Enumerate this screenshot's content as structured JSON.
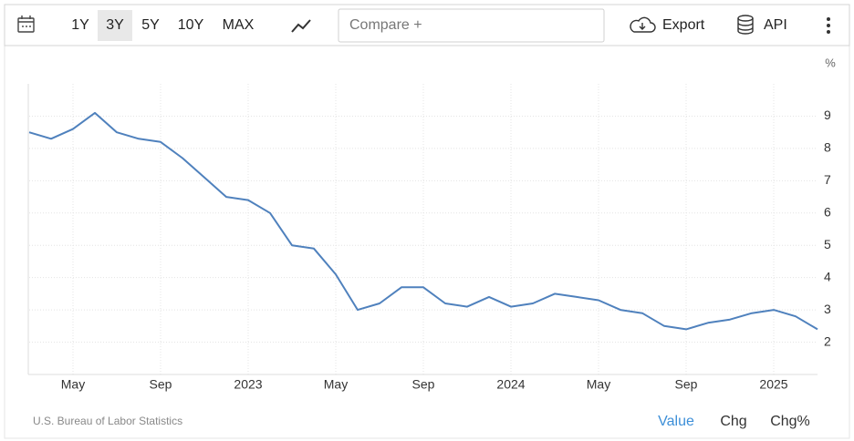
{
  "toolbar": {
    "ranges": [
      "1Y",
      "3Y",
      "5Y",
      "10Y",
      "MAX"
    ],
    "active_range": 1,
    "compare_placeholder": "Compare +",
    "export": "Export",
    "api": "API"
  },
  "chart_data": {
    "type": "line",
    "y_unit": "%",
    "categories": [
      null,
      null,
      "May",
      null,
      null,
      null,
      "Sep",
      null,
      null,
      null,
      "2023",
      null,
      null,
      null,
      "May",
      null,
      null,
      null,
      "Sep",
      null,
      null,
      null,
      "2024",
      null,
      null,
      null,
      "May",
      null,
      null,
      null,
      "Sep",
      null,
      null,
      null,
      "2025",
      null,
      null
    ],
    "series": [
      {
        "name": "Value",
        "color": "#4f81bd",
        "values": [
          8.5,
          8.3,
          8.6,
          9.1,
          8.5,
          8.3,
          8.2,
          7.7,
          7.1,
          6.5,
          6.4,
          6.0,
          5.0,
          4.9,
          4.1,
          3.0,
          3.2,
          3.7,
          3.7,
          3.2,
          3.1,
          3.4,
          3.1,
          3.2,
          3.5,
          3.4,
          3.3,
          3.0,
          2.9,
          2.5,
          2.4,
          2.6,
          2.7,
          2.9,
          3.0,
          2.8,
          2.4
        ]
      }
    ],
    "ylim": [
      1,
      10
    ],
    "yticks": [
      2,
      3,
      4,
      5,
      6,
      7,
      8,
      9
    ],
    "grid": true
  },
  "footer": {
    "source": "U.S. Bureau of Labor Statistics",
    "views": [
      "Value",
      "Chg",
      "Chg%"
    ],
    "active_view": 0
  }
}
